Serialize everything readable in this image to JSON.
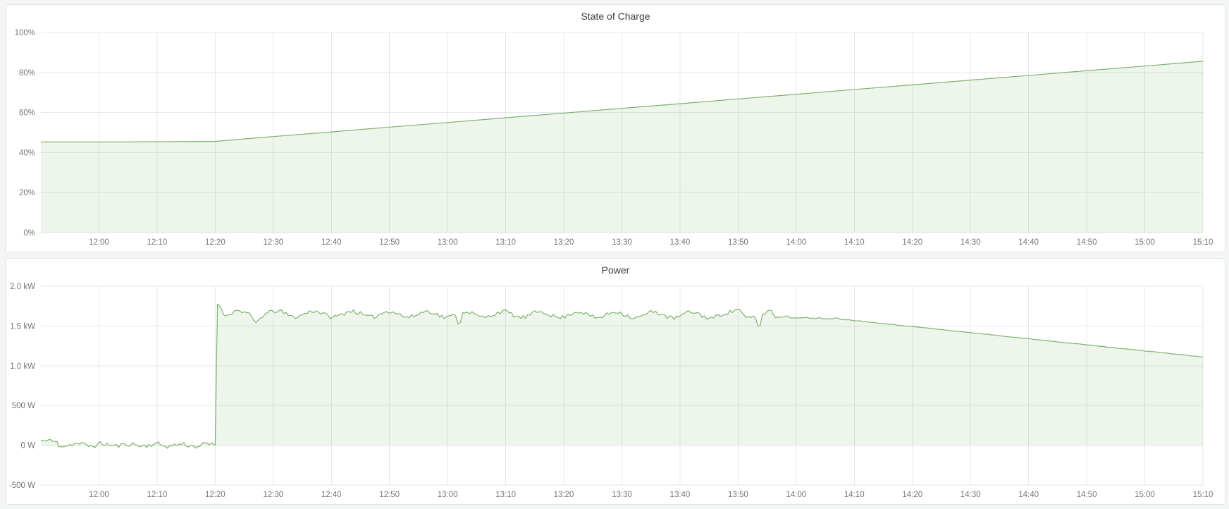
{
  "page": {
    "background_color": "#f4f5f5",
    "panel_background": "#ffffff",
    "panel_border_color": "#e2e3e6"
  },
  "panels": [
    {
      "title": "State of Charge"
    },
    {
      "title": "Power"
    }
  ],
  "chart_data": [
    {
      "type": "area",
      "title": "State of Charge",
      "line_color": "#7eb26d",
      "fill_color": "rgba(126,178,109,0.13)",
      "grid_color": "#e6e7ea",
      "legend": "none",
      "x_axis": {
        "unit": "time",
        "start": "11:50",
        "end": "15:10",
        "ticks": [
          "12:00",
          "12:10",
          "12:20",
          "12:30",
          "12:40",
          "12:50",
          "13:00",
          "13:10",
          "13:20",
          "13:30",
          "13:40",
          "13:50",
          "14:00",
          "14:10",
          "14:20",
          "14:30",
          "14:40",
          "14:50",
          "15:00",
          "15:10"
        ]
      },
      "y_axis": {
        "min": 0,
        "max": 100,
        "ticks": [
          {
            "value": 0,
            "label": "0%"
          },
          {
            "value": 20,
            "label": "20%"
          },
          {
            "value": 40,
            "label": "40%"
          },
          {
            "value": 60,
            "label": "60%"
          },
          {
            "value": 80,
            "label": "80%"
          },
          {
            "value": 100,
            "label": "100%"
          }
        ]
      },
      "baseline": 0,
      "points": [
        [
          "11:50",
          45.3
        ],
        [
          "12:00",
          45.3
        ],
        [
          "12:10",
          45.4
        ],
        [
          "12:20",
          45.6
        ],
        [
          "12:30",
          48.0
        ],
        [
          "12:40",
          50.3
        ],
        [
          "12:50",
          52.7
        ],
        [
          "13:00",
          55.0
        ],
        [
          "13:10",
          57.4
        ],
        [
          "13:20",
          59.7
        ],
        [
          "13:30",
          62.1
        ],
        [
          "13:40",
          64.4
        ],
        [
          "13:50",
          66.8
        ],
        [
          "14:00",
          69.1
        ],
        [
          "14:10",
          71.5
        ],
        [
          "14:20",
          73.8
        ],
        [
          "14:30",
          76.2
        ],
        [
          "14:40",
          78.5
        ],
        [
          "14:50",
          80.9
        ],
        [
          "15:00",
          83.2
        ],
        [
          "15:10",
          85.6
        ]
      ]
    },
    {
      "type": "area",
      "title": "Power",
      "line_color": "#7eb26d",
      "fill_color": "rgba(126,178,109,0.13)",
      "grid_color": "#e6e7ea",
      "legend": "none",
      "x_axis": {
        "unit": "time",
        "start": "11:50",
        "end": "15:10",
        "ticks": [
          "12:00",
          "12:10",
          "12:20",
          "12:30",
          "12:40",
          "12:50",
          "13:00",
          "13:10",
          "13:20",
          "13:30",
          "13:40",
          "13:50",
          "14:00",
          "14:10",
          "14:20",
          "14:30",
          "14:40",
          "14:50",
          "15:00",
          "15:10"
        ]
      },
      "y_axis": {
        "min": -500,
        "max": 2000,
        "ticks": [
          {
            "value": -500,
            "label": "-500 W"
          },
          {
            "value": 0,
            "label": "0 W"
          },
          {
            "value": 500,
            "label": "500 W"
          },
          {
            "value": 1000,
            "label": "1.0 kW"
          },
          {
            "value": 1500,
            "label": "1.5 kW"
          },
          {
            "value": 2000,
            "label": "2.0 kW"
          }
        ]
      },
      "baseline": 0,
      "synthesis": {
        "seed": 11,
        "step_min": 0.4,
        "segments": [
          {
            "t0": 710,
            "t1": 713,
            "v0": 65,
            "v1": 50,
            "noise": 15,
            "wave_amp": 10,
            "wave_period": 2
          },
          {
            "t0": 713,
            "t1": 740,
            "v0": 8,
            "v1": 0,
            "noise": 30,
            "wave_amp": 14,
            "wave_period": 4.5
          },
          {
            "t0": 740,
            "t1": 740.4,
            "v0": 0,
            "v1": 1780,
            "noise": 0,
            "wave_amp": 0,
            "wave_period": 1
          },
          {
            "t0": 740.4,
            "t1": 741.4,
            "v0": 1780,
            "v1": 1690,
            "noise": 12,
            "wave_amp": 0,
            "wave_period": 1
          },
          {
            "t0": 741.4,
            "t1": 836,
            "v0": 1655,
            "v1": 1635,
            "noise": 26,
            "wave_amp": 38,
            "wave_period": 6.5
          },
          {
            "t0": 836,
            "t1": 848,
            "v0": 1620,
            "v1": 1585,
            "noise": 10,
            "wave_amp": 8,
            "wave_period": 3
          },
          {
            "t0": 848,
            "t1": 910,
            "v0": 1585,
            "v1": 1110,
            "noise": 3,
            "wave_amp": 0,
            "wave_period": 1
          }
        ],
        "events": [
          {
            "t": 747,
            "v": 1545,
            "w": 2.2
          },
          {
            "t": 782,
            "v": 1430,
            "w": 0.9
          },
          {
            "t": 830,
            "v": 1725,
            "w": 2.4
          },
          {
            "t": 833.6,
            "v": 1450,
            "w": 1.4
          },
          {
            "t": 835.5,
            "v": 1705,
            "w": 1.6
          }
        ]
      }
    }
  ]
}
